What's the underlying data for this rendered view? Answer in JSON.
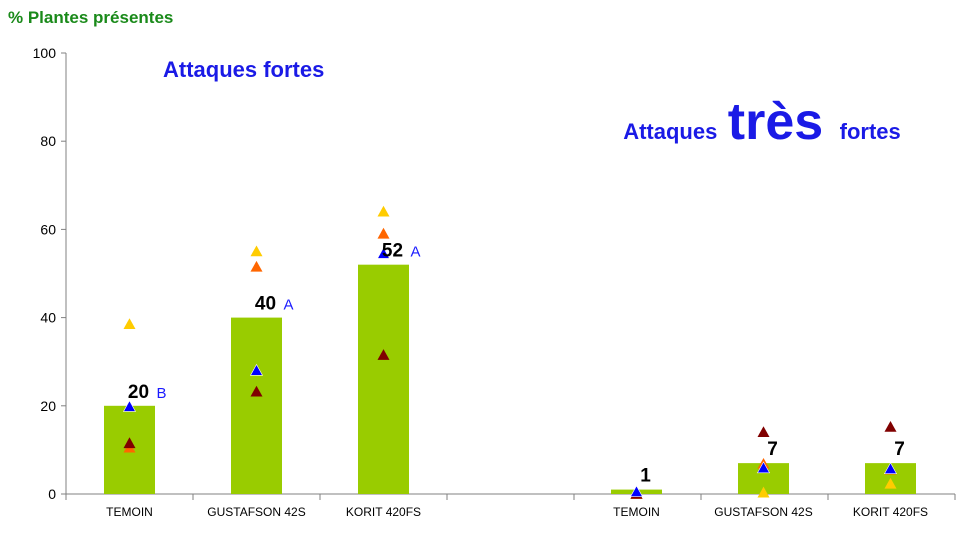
{
  "chart_data": {
    "type": "bar",
    "ylabel": "% Plantes présentes",
    "ylim": [
      0,
      100
    ],
    "yticks": [
      0,
      20,
      40,
      60,
      80,
      100
    ],
    "groups": [
      {
        "title": "Attaques fortes",
        "categories": [
          "TEMOIN",
          "GUSTAFSON 42S",
          "KORIT 420FS"
        ],
        "values": [
          20,
          40,
          52
        ],
        "letters": [
          "B",
          "A",
          "A"
        ],
        "points": [
          {
            "yellow": 38.5,
            "orange": 10.5,
            "blue": 19.8,
            "darkred": 11.5
          },
          {
            "yellow": 55,
            "orange": 51.5,
            "blue": 28,
            "darkred": 23.2
          },
          {
            "yellow": 64,
            "orange": 59,
            "blue": 54.5,
            "darkred": 31.5
          }
        ]
      },
      {
        "title": {
          "pre": "Attaques",
          "big": "très",
          "post": "fortes"
        },
        "categories": [
          "TEMOIN",
          "GUSTAFSON 42S",
          "KORIT 420FS"
        ],
        "values": [
          1,
          7,
          7
        ],
        "letters": [
          "",
          "",
          ""
        ],
        "points": [
          {
            "yellow": 0,
            "orange": 0,
            "blue": 0.5,
            "darkred": 0
          },
          {
            "yellow": 0.3,
            "orange": 6.8,
            "blue": 5.9,
            "darkred": 14
          },
          {
            "yellow": 2.3,
            "orange": 5.5,
            "blue": 5.7,
            "darkred": 15.2
          }
        ]
      }
    ],
    "colors": {
      "bar": "#99cc00",
      "yellow": "#ffcc00",
      "orange": "#ff6600",
      "blue": "#0000ff",
      "darkred": "#800000",
      "axis": "#808080",
      "annotation": "#1a1ae6",
      "ylabel": "#1a8a1a"
    }
  }
}
